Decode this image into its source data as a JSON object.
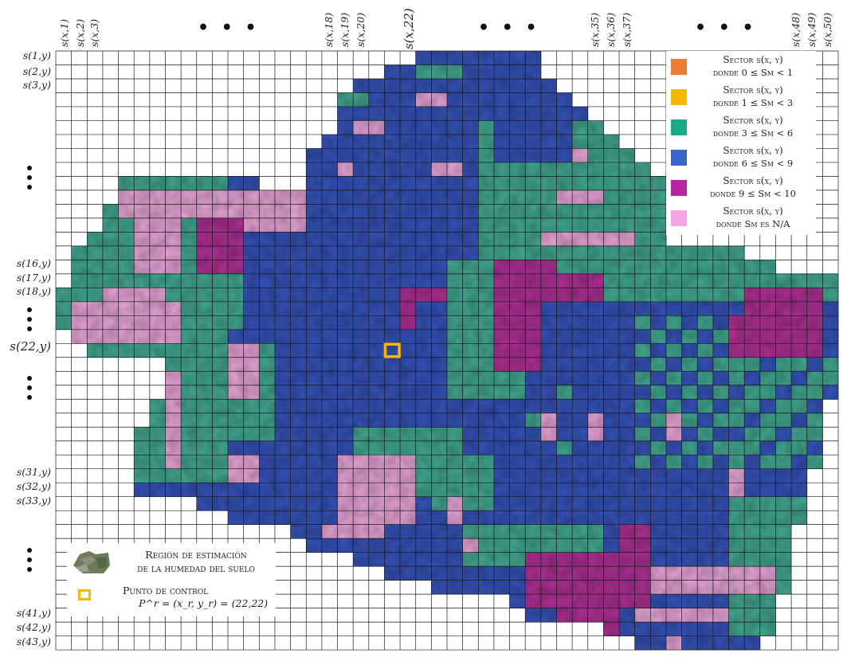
{
  "column_labels": [
    {
      "text": "s(x,1)"
    },
    {
      "text": "s(x,2)"
    },
    {
      "text": "s(x,3)"
    },
    {
      "text": "s(x,18)"
    },
    {
      "text": "s(x,19)"
    },
    {
      "text": "s(x,20)"
    },
    {
      "text": "s(x,22)"
    },
    {
      "text": "s(x,35)"
    },
    {
      "text": "s(x,36)"
    },
    {
      "text": "s(x,37)"
    },
    {
      "text": "s(x,48)"
    },
    {
      "text": "s(x,49)"
    },
    {
      "text": "s(x,50)"
    }
  ],
  "row_labels": [
    {
      "text": "s(1,y)"
    },
    {
      "text": "s(2,y)"
    },
    {
      "text": "s(3,y)"
    },
    {
      "text": "s(16,y)"
    },
    {
      "text": "s(17,y)"
    },
    {
      "text": "s(18,y)"
    },
    {
      "text": "s(22,y)"
    },
    {
      "text": "s(31,y)"
    },
    {
      "text": "s(32,y)"
    },
    {
      "text": "s(33,y)"
    },
    {
      "text": "s(41,y)"
    },
    {
      "text": "s(42,y)"
    },
    {
      "text": "s(43,y)"
    }
  ],
  "ellipsis": "• • •",
  "legend": {
    "items": [
      {
        "title": "Sector s(x, y)",
        "condition": "donde 0 ≤ Sm < 1",
        "color": "#ee7d34"
      },
      {
        "title": "Sector s(x, y)",
        "condition": "donde 1 ≤ Sm < 3",
        "color": "#f5b800"
      },
      {
        "title": "Sector s(x, y)",
        "condition": "donde 3 ≤ Sm < 6",
        "color": "#1aa98a"
      },
      {
        "title": "Sector s(x, y)",
        "condition": "donde 6 ≤ Sm < 9",
        "color": "#3a66c8"
      },
      {
        "title": "Sector s(x, y)",
        "condition": "donde 9 ≤ Sm < 10",
        "color": "#b5269f"
      },
      {
        "title": "Sector s(x, y)",
        "condition": "donde Sm es N/A",
        "color": "#f3a6df"
      }
    ]
  },
  "info": {
    "region_label_line1": "Región de estimación",
    "region_label_line2": "de la humedad del suelo",
    "control_label": "Punto de control",
    "control_formula": "P^r = (x_r, y_r) = (22,22)"
  },
  "colors": {
    "blue": "#1f3fb0",
    "teal": "#2e9e84",
    "magenta": "#a5198a",
    "pink": "#e59ad3",
    "control_point": "#f5b800",
    "grid": "#1a1a1a"
  },
  "grid": {
    "columns": 50,
    "rows": 43,
    "control_point": {
      "x": 22,
      "y": 22
    }
  }
}
